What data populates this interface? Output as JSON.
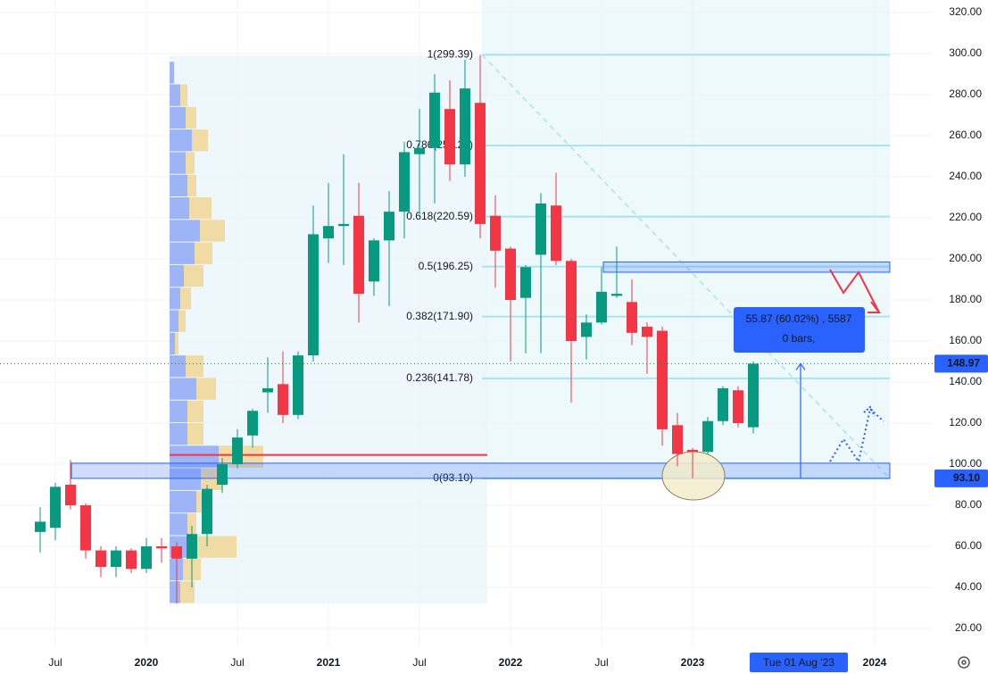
{
  "chart_data": {
    "type": "candlestick",
    "up_color": "#089981",
    "down_color": "#f23645",
    "grid": true,
    "categories": [
      null,
      "Jul",
      null,
      null,
      null,
      null,
      null,
      "2020",
      null,
      null,
      null,
      null,
      null,
      "Jul",
      null,
      null,
      null,
      null,
      null,
      "2021",
      null,
      null,
      null,
      null,
      null,
      "Jul",
      null,
      null,
      null,
      null,
      null,
      "2022",
      null,
      null,
      null,
      null,
      null,
      "Jul",
      null,
      null,
      null,
      null,
      null,
      "2023",
      null,
      null,
      null,
      null,
      null,
      null,
      "Tue 01 Aug '23",
      null,
      null,
      null,
      null,
      "2024"
    ],
    "highlight": "Tue 01 Aug '23",
    "open": [
      67,
      69,
      90,
      80,
      58,
      50,
      58,
      49,
      60,
      60,
      54,
      66,
      90,
      100,
      114,
      135,
      139,
      124,
      153,
      210,
      216,
      221,
      189,
      209,
      223,
      251,
      254,
      273,
      246,
      276,
      221,
      205,
      181,
      202,
      226,
      199,
      162,
      169,
      182,
      179,
      167,
      165,
      119,
      107,
      106,
      121,
      136,
      118,
      null,
      null,
      null,
      null,
      null,
      null,
      null,
      null
    ],
    "high": [
      79,
      91,
      102,
      81,
      60,
      60,
      59,
      64,
      64,
      62,
      70,
      90,
      103,
      117,
      127,
      152,
      155,
      155,
      226,
      237,
      251,
      237,
      210,
      233,
      257,
      273,
      290,
      287,
      297,
      299.39,
      231,
      206,
      197,
      232,
      242,
      200,
      173,
      196,
      206,
      190,
      169,
      167,
      125,
      108,
      123,
      138,
      138,
      150,
      null,
      null,
      null,
      null,
      null,
      null,
      null,
      null
    ],
    "low": [
      57,
      63,
      78,
      54,
      45,
      45,
      47,
      47,
      52,
      32,
      40,
      60,
      86,
      98,
      108,
      125,
      120,
      122,
      150,
      198,
      197,
      169,
      182,
      177,
      210,
      222,
      227,
      238,
      240,
      210,
      186,
      150,
      154,
      154,
      197,
      130,
      151,
      168,
      181,
      158,
      144,
      109,
      99,
      93.1,
      105,
      119,
      118,
      115,
      null,
      null,
      null,
      null,
      null,
      null,
      null,
      null
    ],
    "close": [
      72,
      89,
      80,
      58,
      50,
      58,
      49,
      60,
      59,
      54,
      66,
      88,
      100,
      113,
      126,
      137,
      124,
      153,
      212,
      216,
      217,
      183,
      209,
      223,
      252,
      254,
      281,
      246,
      283,
      217,
      204,
      180,
      196,
      227,
      199,
      160,
      169,
      184,
      183,
      164,
      162,
      117,
      105,
      106,
      121,
      137,
      120,
      148.97,
      null,
      null,
      null,
      null,
      null,
      null,
      null,
      null
    ],
    "ylim": [
      10.87,
      326.09
    ],
    "yticks": [
      {
        "value": 20,
        "label": "20.00"
      },
      {
        "value": 40,
        "label": "40.00"
      },
      {
        "value": 60,
        "label": "60.00"
      },
      {
        "value": 80,
        "label": "80.00"
      },
      {
        "value": 100,
        "label": "100.00"
      },
      {
        "value": 120,
        "label": "120.00"
      },
      {
        "value": 140,
        "label": "140.00"
      },
      {
        "value": 160,
        "label": "160.00"
      },
      {
        "value": 180,
        "label": "180.00"
      },
      {
        "value": 200,
        "label": "200.00"
      },
      {
        "value": 220,
        "label": "220.00"
      },
      {
        "value": 240,
        "label": "240.00"
      },
      {
        "value": 260,
        "label": "260.00"
      },
      {
        "value": 280,
        "label": "280.00"
      },
      {
        "value": 300,
        "label": "300.00"
      },
      {
        "value": 320,
        "label": "320.00"
      }
    ],
    "price_labels": [
      {
        "value": 148.97,
        "label": "148.97"
      },
      {
        "value": 93.1,
        "label": "93.10"
      }
    ],
    "volume_profile": {
      "bins": [
        32,
        43,
        54,
        65,
        76,
        87,
        98,
        109,
        120,
        131,
        142,
        153,
        164,
        175,
        186,
        197,
        208,
        219,
        230,
        241,
        252,
        263,
        274,
        285,
        296
      ],
      "up": [
        12,
        15,
        30,
        20,
        30,
        35,
        55,
        20,
        20,
        30,
        18,
        6,
        10,
        12,
        16,
        28,
        34,
        22,
        20,
        18,
        25,
        18,
        12,
        5
      ],
      "down": [
        16,
        20,
        45,
        10,
        12,
        25,
        50,
        18,
        18,
        22,
        20,
        4,
        8,
        12,
        22,
        20,
        28,
        25,
        10,
        10,
        18,
        12,
        8,
        0
      ]
    },
    "fib_levels": [
      {
        "value": 299.39,
        "label": "1(299.39)"
      },
      {
        "value": 255.24,
        "label": "0.786(255.24)"
      },
      {
        "value": 220.59,
        "label": "0.618(220.59)"
      },
      {
        "value": 196.25,
        "label": "0.5(196.25)"
      },
      {
        "value": 171.9,
        "label": "0.382(171.90)"
      },
      {
        "value": 141.78,
        "label": "0.236(141.78)"
      },
      {
        "value": 93.1,
        "label": "0(93.10)"
      }
    ],
    "zones": [
      {
        "from": 93.1,
        "to": 100.5
      },
      {
        "from": 193.5,
        "to": 198.5
      }
    ],
    "level_line": 104.5,
    "measure": {
      "from": 93.1,
      "to": 148.97,
      "label": "55.87 (60.02%) , 5587",
      "bars": "0 bars,"
    }
  }
}
